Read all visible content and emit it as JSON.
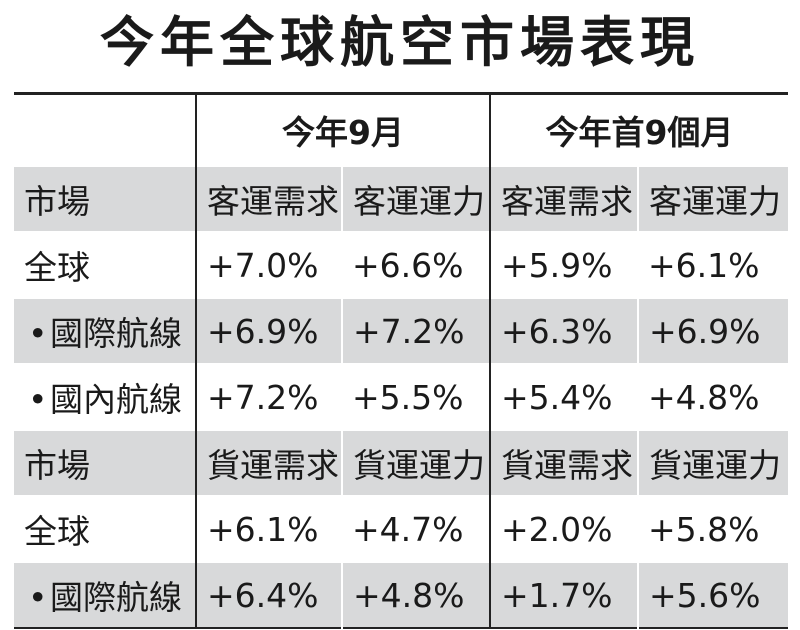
{
  "title": "今年全球航空市場表現",
  "periods": [
    "今年9月",
    "今年首9個月"
  ],
  "passenger_header": {
    "market": "市場",
    "cols": [
      "客運需求",
      "客運運力",
      "客運需求",
      "客運運力"
    ]
  },
  "passenger_rows": [
    {
      "bullet": "",
      "label": "全球",
      "values": [
        "+7.0%",
        "+6.6%",
        "+5.9%",
        "+6.1%"
      ]
    },
    {
      "bullet": "•",
      "label": "國際航線",
      "values": [
        "+6.9%",
        "+7.2%",
        "+6.3%",
        "+6.9%"
      ]
    },
    {
      "bullet": "•",
      "label": "國內航線",
      "values": [
        "+7.2%",
        "+5.5%",
        "+5.4%",
        "+4.8%"
      ]
    }
  ],
  "cargo_header": {
    "market": "市場",
    "cols": [
      "貨運需求",
      "貨運運力",
      "貨運需求",
      "貨運運力"
    ]
  },
  "cargo_rows": [
    {
      "bullet": "",
      "label": "全球",
      "values": [
        "+6.1%",
        "+4.7%",
        "+2.0%",
        "+5.8%"
      ]
    },
    {
      "bullet": "•",
      "label": "國際航線",
      "values": [
        "+6.4%",
        "+4.8%",
        "+1.7%",
        "+5.6%"
      ]
    }
  ]
}
